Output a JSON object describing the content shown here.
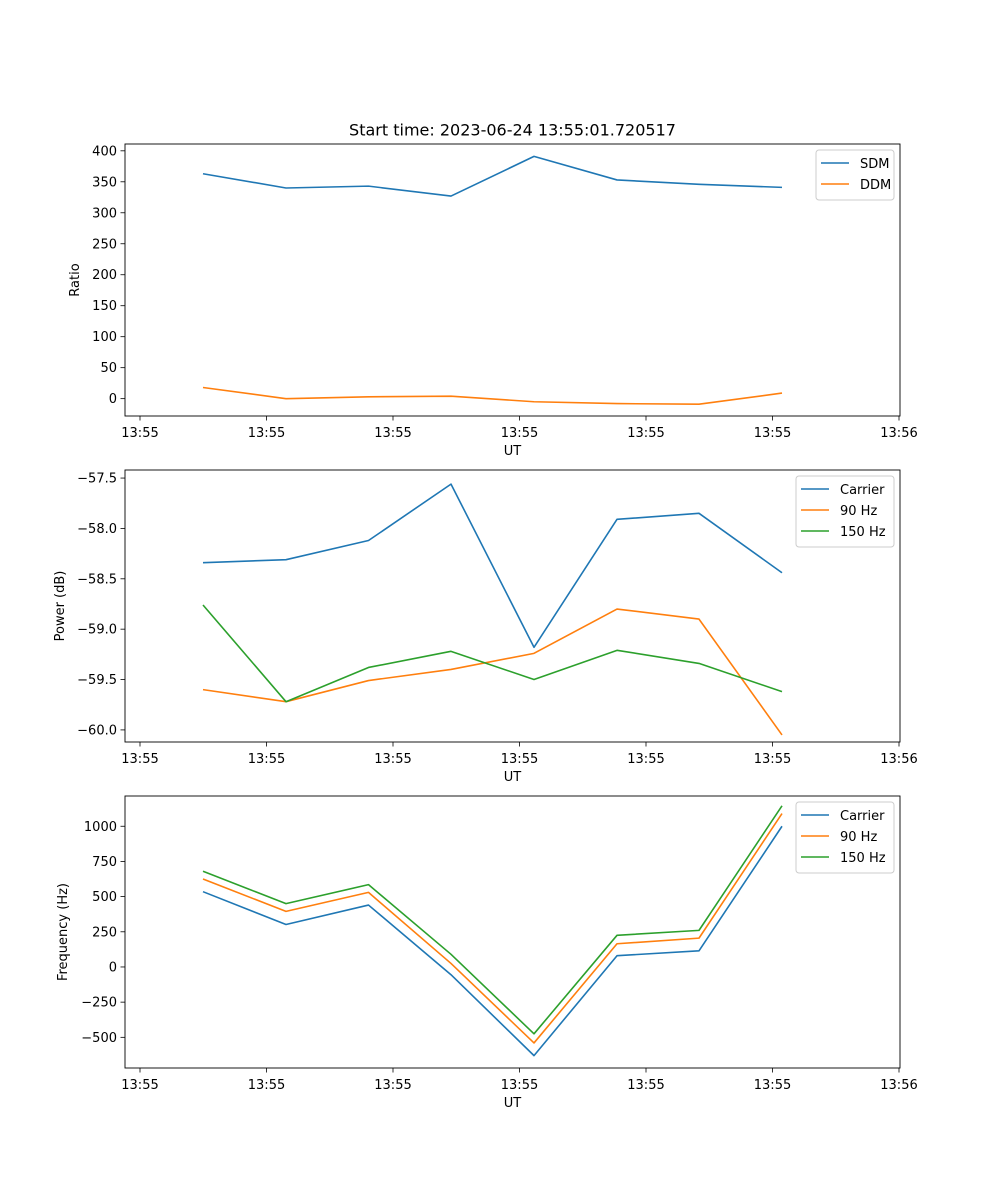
{
  "figure": {
    "title": "Start time: 2023-06-24 13:55:01.720517"
  },
  "chart_data": [
    {
      "type": "line",
      "title": "Start time: 2023-06-24 13:55:01.720517",
      "xlabel": "UT",
      "ylabel": "Ratio",
      "x_tick_labels": [
        "13:55",
        "13:55",
        "13:55",
        "13:55",
        "13:55",
        "13:55",
        "13:56"
      ],
      "y_ticks": [
        0,
        50,
        100,
        150,
        200,
        250,
        300,
        350,
        400
      ],
      "y_tick_labels": [
        "0",
        "50",
        "100",
        "150",
        "200",
        "250",
        "300",
        "350",
        "400"
      ],
      "ylim": [
        -28,
        411
      ],
      "grid": false,
      "legend": "upper right",
      "series": [
        {
          "name": "SDM",
          "color": "#1f77b4",
          "values": [
            363,
            340,
            343,
            327,
            391,
            353,
            346,
            341
          ]
        },
        {
          "name": "DDM",
          "color": "#ff7f0e",
          "values": [
            18,
            0,
            3,
            4,
            -5,
            -8,
            -9,
            9
          ]
        }
      ]
    },
    {
      "type": "line",
      "xlabel": "UT",
      "ylabel": "Power (dB)",
      "x_tick_labels": [
        "13:55",
        "13:55",
        "13:55",
        "13:55",
        "13:55",
        "13:55",
        "13:56"
      ],
      "y_ticks": [
        -60.0,
        -59.5,
        -59.0,
        -58.5,
        -58.0,
        -57.5
      ],
      "y_tick_labels": [
        "−60.0",
        "−59.5",
        "−59.0",
        "−58.5",
        "−58.0",
        "−57.5"
      ],
      "ylim": [
        -60.12,
        -57.42
      ],
      "grid": false,
      "legend": "upper right",
      "series": [
        {
          "name": "Carrier",
          "color": "#1f77b4",
          "values": [
            -58.34,
            -58.31,
            -58.12,
            -57.56,
            -59.18,
            -57.91,
            -57.85,
            -58.44
          ]
        },
        {
          "name": "90 Hz",
          "color": "#ff7f0e",
          "values": [
            -59.6,
            -59.72,
            -59.51,
            -59.4,
            -59.24,
            -58.8,
            -58.9,
            -60.05
          ]
        },
        {
          "name": "150 Hz",
          "color": "#2ca02c",
          "values": [
            -58.76,
            -59.72,
            -59.38,
            -59.22,
            -59.5,
            -59.21,
            -59.34,
            -59.62
          ]
        }
      ]
    },
    {
      "type": "line",
      "xlabel": "UT",
      "ylabel": "Frequency (Hz)",
      "x_tick_labels": [
        "13:55",
        "13:55",
        "13:55",
        "13:55",
        "13:55",
        "13:55",
        "13:56"
      ],
      "y_ticks": [
        -500,
        -250,
        0,
        250,
        500,
        750,
        1000
      ],
      "y_tick_labels": [
        "−500",
        "−250",
        "0",
        "250",
        "500",
        "750",
        "1000"
      ],
      "ylim": [
        -718,
        1215
      ],
      "grid": false,
      "legend": "upper right",
      "series": [
        {
          "name": "Carrier",
          "color": "#1f77b4",
          "values": [
            535,
            302,
            440,
            -55,
            -630,
            80,
            115,
            1000
          ]
        },
        {
          "name": "90 Hz",
          "color": "#ff7f0e",
          "values": [
            625,
            395,
            530,
            25,
            -540,
            165,
            205,
            1090
          ]
        },
        {
          "name": "150 Hz",
          "color": "#2ca02c",
          "values": [
            680,
            450,
            585,
            90,
            -475,
            225,
            260,
            1145
          ]
        }
      ]
    }
  ]
}
